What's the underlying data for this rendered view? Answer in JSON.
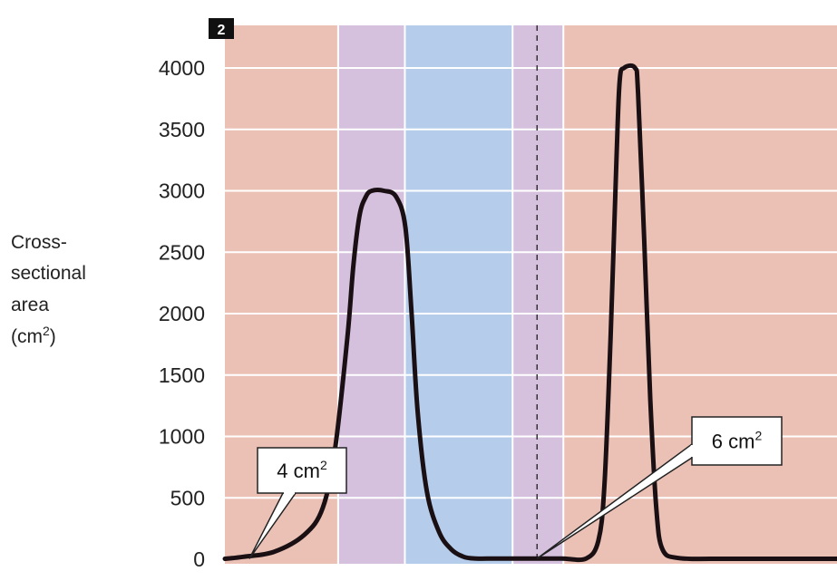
{
  "panel_number": "2",
  "chart_data": {
    "type": "line",
    "title": "",
    "ylabel": {
      "line1": "Cross-",
      "line2": "sectional",
      "line3": "area",
      "line4_pre": "(cm",
      "line4_sup": "2",
      "line4_post": ")"
    },
    "xlabel": "",
    "ylim": [
      0,
      4000
    ],
    "y_ticks": [
      "0",
      "500",
      "1000",
      "1500",
      "2000",
      "2500",
      "3000",
      "3500",
      "4000"
    ],
    "grid": true,
    "x_range": [
      0,
      100
    ],
    "series": [
      {
        "values_x": [
          0,
          3,
          8,
          13,
          16,
          18,
          20,
          21,
          22,
          23,
          24,
          26,
          28,
          29.5,
          30.5,
          31.5,
          33,
          35,
          37,
          39,
          41,
          44,
          47,
          51,
          55,
          59,
          61,
          62,
          63,
          64,
          64.5,
          65.2,
          67,
          67.5,
          68.5,
          69.5,
          70.5,
          71.5,
          74,
          80,
          90,
          100
        ],
        "values_y": [
          4,
          20,
          60,
          200,
          420,
          900,
          1800,
          2400,
          2800,
          2950,
          3000,
          3000,
          2950,
          2700,
          2000,
          1200,
          550,
          220,
          80,
          20,
          6,
          6,
          6,
          6,
          6,
          6,
          150,
          600,
          1800,
          3300,
          3900,
          4000,
          4000,
          3800,
          2600,
          1300,
          400,
          80,
          10,
          4,
          4,
          4
        ]
      }
    ],
    "bands": [
      {
        "from": 0,
        "to": 18.5,
        "color": "#ebc1b6"
      },
      {
        "from": 18.5,
        "to": 29.4,
        "color": "#d5c0de"
      },
      {
        "from": 29.4,
        "to": 47,
        "color": "#b5cdeb"
      },
      {
        "from": 47,
        "to": 55.3,
        "color": "#d5c0de"
      },
      {
        "from": 55.3,
        "to": 100,
        "color": "#ebc1b6"
      }
    ],
    "divider_x": 51,
    "annotations": [
      {
        "text": "4 cm",
        "sup": "2",
        "x": 4,
        "y": 4
      },
      {
        "text": "6 cm",
        "sup": "2",
        "x": 51,
        "y": 6
      }
    ]
  }
}
